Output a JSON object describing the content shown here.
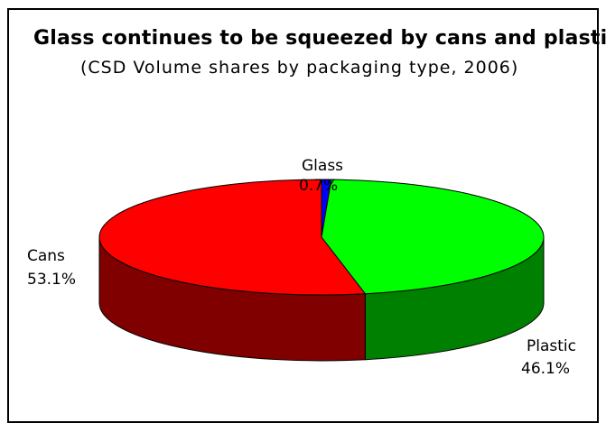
{
  "chart_data": {
    "type": "pie",
    "title": "Glass continues to be squeezed by cans and plastic/",
    "subtitle": "(CSD Volume shares by packaging type, 2006)",
    "slices": [
      {
        "name": "Glass",
        "value": 0.7,
        "label": "0.7%",
        "color": "#0000ff",
        "side_color": "#000080"
      },
      {
        "name": "Plastic",
        "value": 46.1,
        "label": "46.1%",
        "color": "#00ff00",
        "side_color": "#008000"
      },
      {
        "name": "Cans",
        "value": 53.1,
        "label": "53.1%",
        "color": "#ff0000",
        "side_color": "#800000"
      }
    ],
    "three_d": true,
    "legend": "none"
  }
}
